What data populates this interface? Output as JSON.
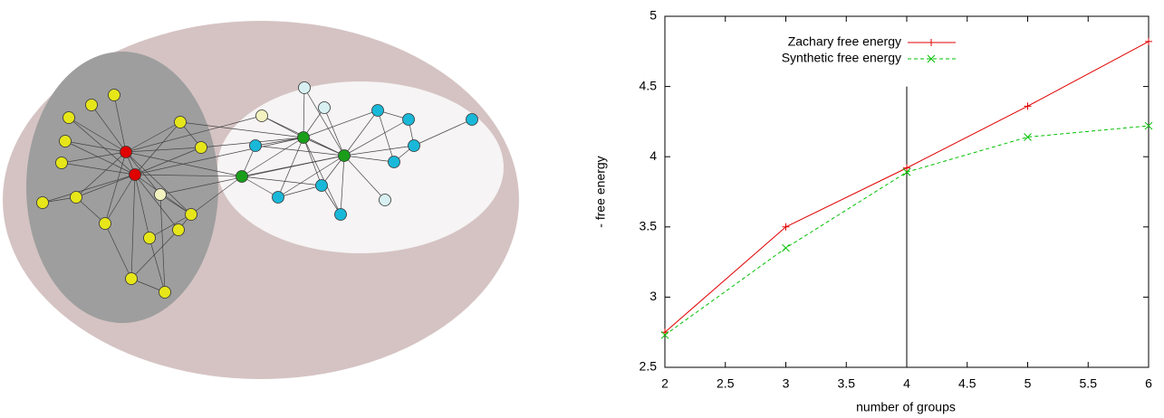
{
  "chart_data": {
    "type": "line",
    "x_label": "number of groups",
    "y_label": "- free energy",
    "x": [
      2,
      3,
      4,
      5,
      6
    ],
    "series": [
      {
        "name": "Zachary free energy",
        "color": "#e00000",
        "marker": "+",
        "dash": "solid",
        "values": [
          2.75,
          3.5,
          3.92,
          4.36,
          4.82
        ]
      },
      {
        "name": "Synthetic free energy",
        "color": "#00c000",
        "marker": "x",
        "dash": "dashed",
        "values": [
          2.73,
          3.35,
          3.89,
          4.14,
          4.22
        ]
      }
    ],
    "xlim": [
      2,
      6
    ],
    "xticks": [
      2,
      2.5,
      3,
      3.5,
      4,
      4.5,
      5,
      5.5,
      6
    ],
    "ylim": [
      2.5,
      5
    ],
    "yticks": [
      2.5,
      3,
      3.5,
      4,
      4.5,
      5
    ],
    "vline_x": 4,
    "vline_ytop": 4.5,
    "legend": "upper-left"
  }
}
